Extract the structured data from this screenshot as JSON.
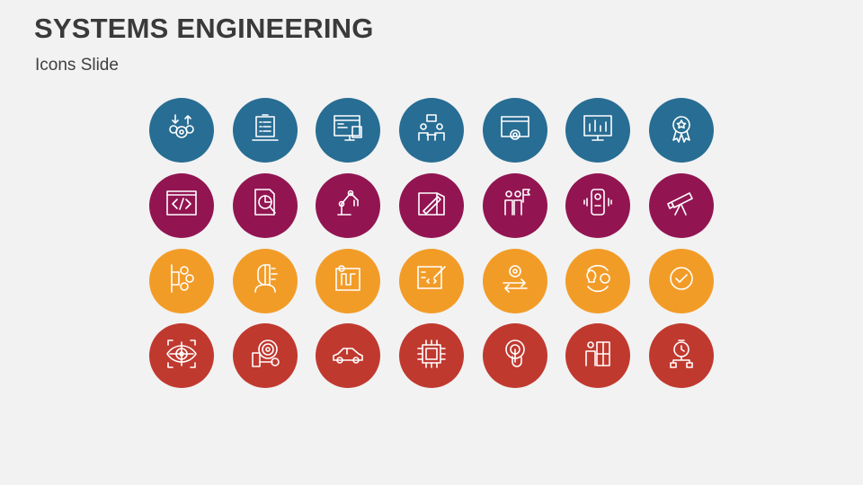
{
  "slide": {
    "title": "SYSTEMS ENGINEERING",
    "subtitle": "Icons Slide"
  },
  "colors": {
    "row1": "#286d93",
    "row2": "#921552",
    "row3": "#f29c28",
    "row4": "#c0392f",
    "background": "#f2f2f2"
  },
  "icons": [
    [
      "gears-arrows-icon",
      "laptop-checklist-icon",
      "monitor-code-database-icon",
      "meeting-presentation-icon",
      "browser-gear-icon",
      "monitor-chart-icon",
      "award-badge-icon"
    ],
    [
      "code-window-icon",
      "document-analysis-icon",
      "robotic-arm-icon",
      "blueprint-ruler-icon",
      "team-flag-icon",
      "smartphone-vibrate-icon",
      "telescope-icon"
    ],
    [
      "process-gears-icon",
      "human-cyborg-icon",
      "route-map-icon",
      "board-code-pencil-icon",
      "gear-exchange-arrows-icon",
      "idea-gear-cycle-icon",
      "checkmark-icon"
    ],
    [
      "eye-target-icon",
      "target-checklist-icon",
      "car-icon",
      "microchip-icon",
      "touch-target-icon",
      "person-puzzle-icon",
      "stopwatch-network-icon"
    ]
  ]
}
